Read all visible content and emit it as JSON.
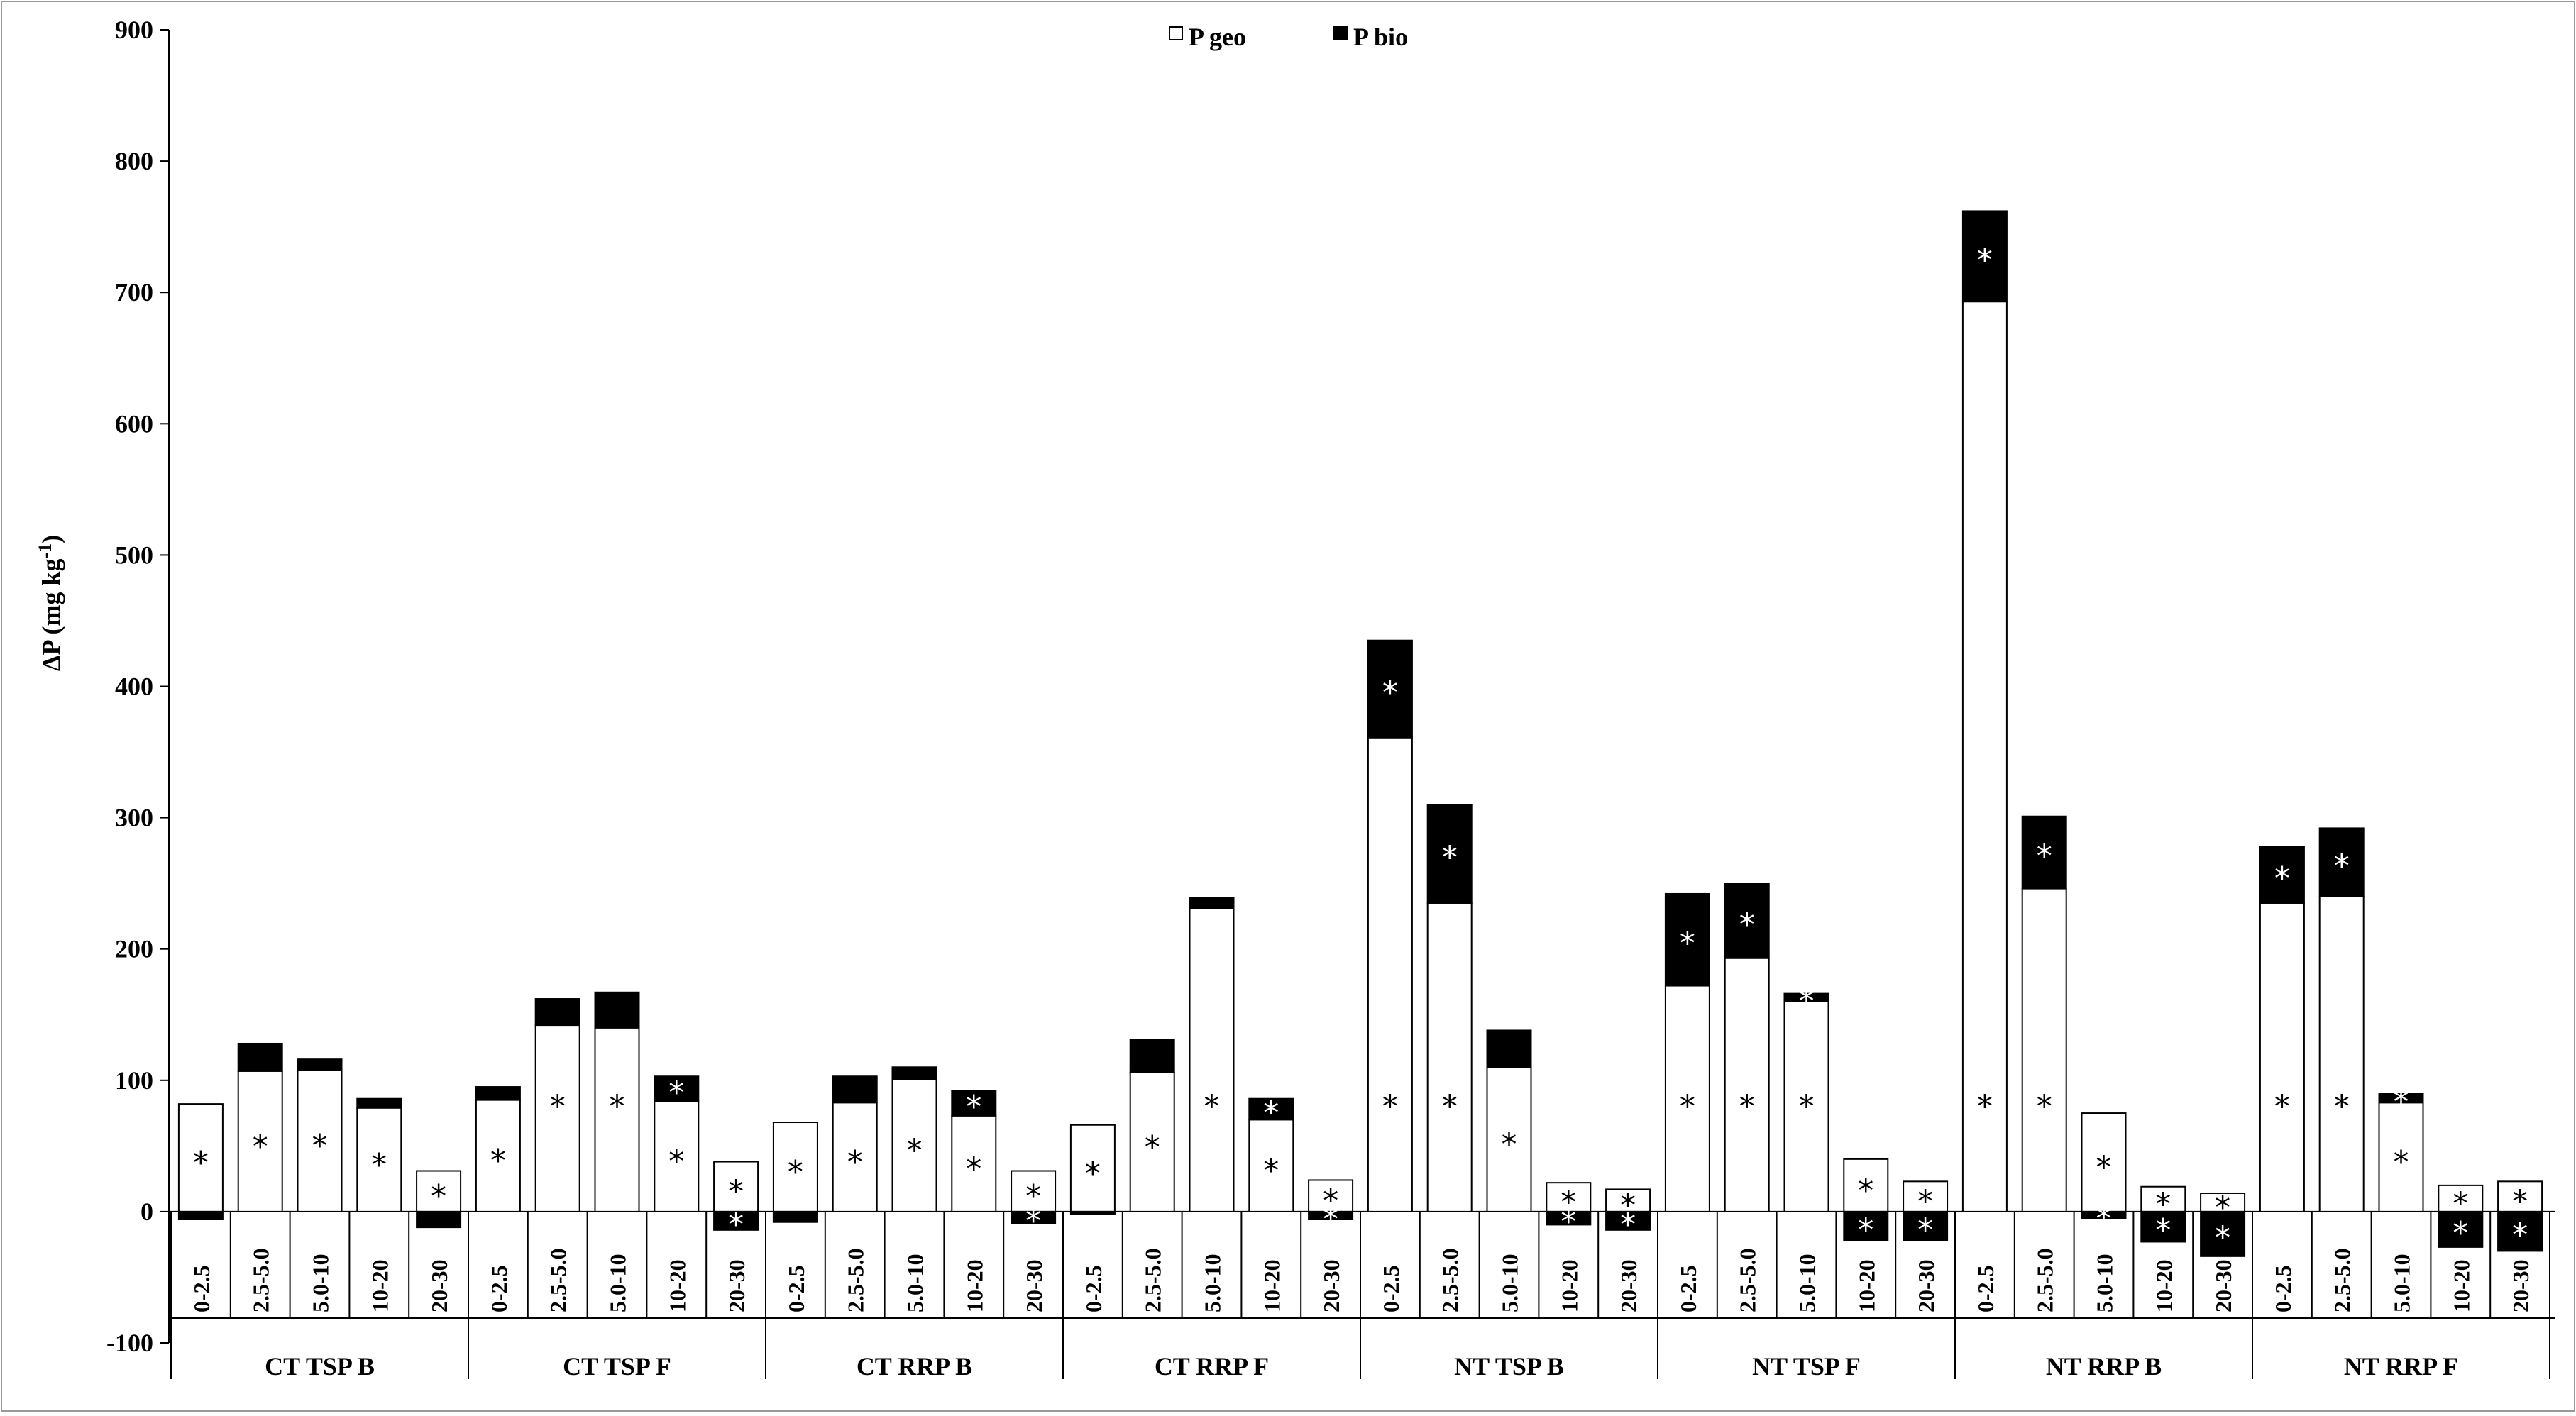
{
  "chart_data": {
    "type": "bar",
    "stacked": true,
    "ylabel": "ΔP (mg kg",
    "ylabel_sup": "-1",
    "ylabel_close": ")",
    "ylim": [
      -100,
      900
    ],
    "yticks": [
      -100,
      0,
      100,
      200,
      300,
      400,
      500,
      600,
      700,
      800,
      900
    ],
    "grid": false,
    "legend_position": "top-center",
    "legend": [
      {
        "name": "P geo",
        "color": "#ffffff"
      },
      {
        "name": "P bio",
        "color": "#000000"
      }
    ],
    "categories": [
      "0-2.5",
      "2.5-5.0",
      "5.0-10",
      "10-20",
      "20-30"
    ],
    "groups": [
      {
        "name": "CT  TSP B",
        "geo": [
          82,
          107,
          108,
          79,
          31
        ],
        "bio": [
          -6,
          21,
          8,
          7,
          -12
        ],
        "geo_sig": [
          true,
          true,
          true,
          true,
          true
        ],
        "bio_sig": [
          false,
          false,
          false,
          false,
          false
        ]
      },
      {
        "name": "CT  TSP F",
        "geo": [
          85,
          142,
          140,
          84,
          38
        ],
        "bio": [
          10,
          20,
          27,
          19,
          -14
        ],
        "geo_sig": [
          true,
          true,
          true,
          true,
          true
        ],
        "bio_sig": [
          false,
          false,
          false,
          true,
          true
        ]
      },
      {
        "name": "CT  RRP B",
        "geo": [
          68,
          83,
          101,
          73,
          31
        ],
        "bio": [
          -8,
          20,
          9,
          19,
          -9
        ],
        "geo_sig": [
          true,
          true,
          true,
          true,
          true
        ],
        "bio_sig": [
          false,
          false,
          false,
          true,
          true
        ]
      },
      {
        "name": "CT  RRP F",
        "geo": [
          66,
          106,
          231,
          70,
          24
        ],
        "bio": [
          -2,
          25,
          8,
          16,
          -6
        ],
        "geo_sig": [
          true,
          true,
          true,
          true,
          true
        ],
        "bio_sig": [
          false,
          false,
          false,
          true,
          true
        ]
      },
      {
        "name": "NT  TSP B",
        "geo": [
          361,
          235,
          110,
          22,
          17
        ],
        "bio": [
          74,
          75,
          28,
          -10,
          -14
        ],
        "geo_sig": [
          true,
          true,
          true,
          true,
          true
        ],
        "bio_sig": [
          true,
          true,
          false,
          true,
          true
        ]
      },
      {
        "name": "NT  TSP F",
        "geo": [
          172,
          193,
          160,
          40,
          23
        ],
        "bio": [
          70,
          57,
          6,
          -22,
          -22
        ],
        "geo_sig": [
          true,
          true,
          true,
          true,
          true
        ],
        "bio_sig": [
          true,
          true,
          true,
          true,
          true
        ]
      },
      {
        "name": "NT  RRP B",
        "geo": [
          693,
          246,
          75,
          19,
          14
        ],
        "bio": [
          69,
          55,
          -5,
          -23,
          -34
        ],
        "geo_sig": [
          true,
          true,
          true,
          true,
          true
        ],
        "bio_sig": [
          true,
          true,
          true,
          true,
          true
        ]
      },
      {
        "name": "NT  RRP F",
        "geo": [
          235,
          240,
          83,
          20,
          23
        ],
        "bio": [
          43,
          52,
          7,
          -27,
          -30
        ],
        "geo_sig": [
          true,
          true,
          true,
          true,
          true
        ],
        "bio_sig": [
          true,
          true,
          true,
          true,
          true
        ]
      }
    ],
    "star_glyph": "*"
  }
}
